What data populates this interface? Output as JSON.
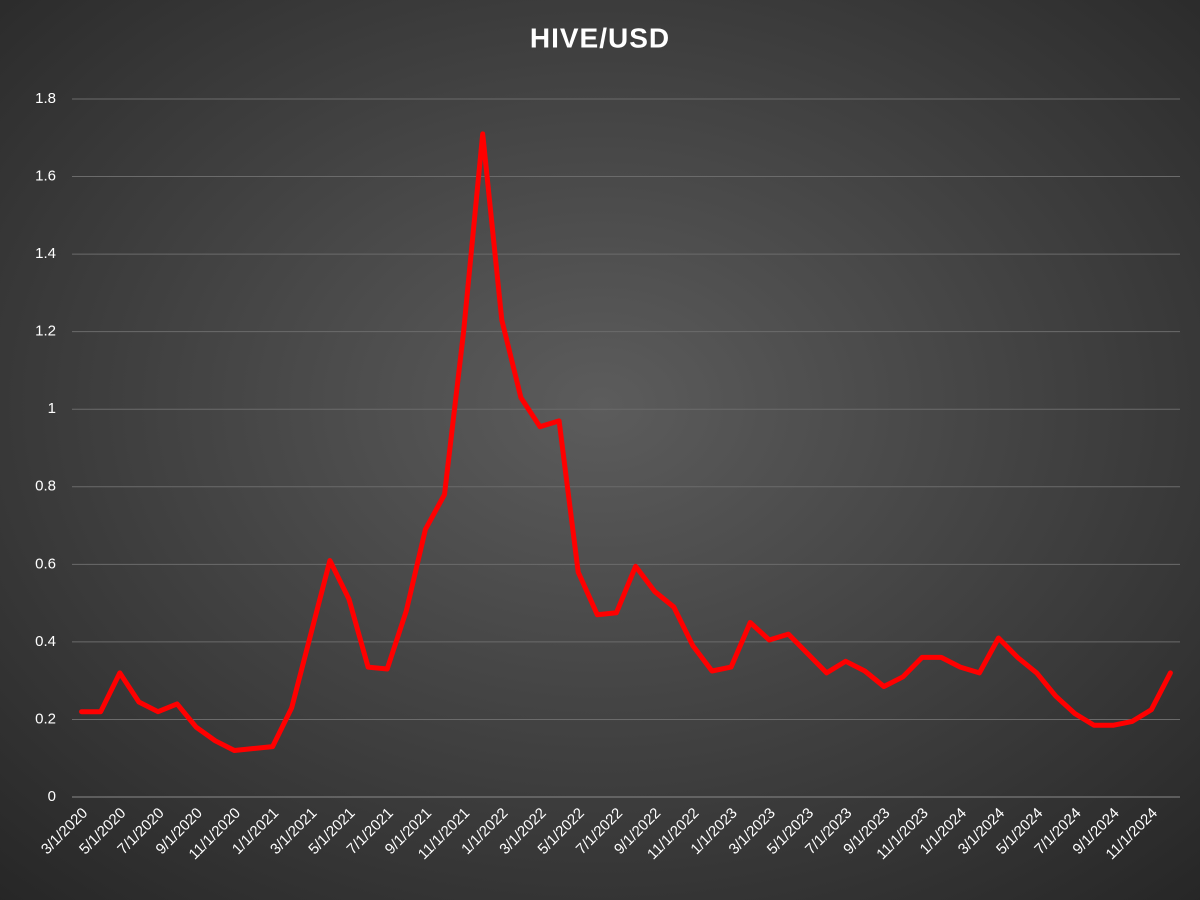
{
  "chart_data": {
    "type": "line",
    "title": "HIVE/USD",
    "categories": [
      "3/1/2020",
      null,
      "5/1/2020",
      null,
      "7/1/2020",
      null,
      "9/1/2020",
      null,
      "11/1/2020",
      null,
      "1/1/2021",
      null,
      "3/1/2021",
      null,
      "5/1/2021",
      null,
      "7/1/2021",
      null,
      "9/1/2021",
      null,
      "11/1/2021",
      null,
      "1/1/2022",
      null,
      "3/1/2022",
      null,
      "5/1/2022",
      null,
      "7/1/2022",
      null,
      "9/1/2022",
      null,
      "11/1/2022",
      null,
      "1/1/2023",
      null,
      "3/1/2023",
      null,
      "5/1/2023",
      null,
      "7/1/2023",
      null,
      "9/1/2023",
      null,
      "11/1/2023",
      null,
      "1/1/2024",
      null,
      "3/1/2024",
      null,
      "5/1/2024",
      null,
      "7/1/2024",
      null,
      "9/1/2024",
      null,
      "11/1/2024",
      null
    ],
    "values": [
      0.22,
      0.22,
      0.32,
      0.245,
      0.22,
      0.24,
      0.18,
      0.145,
      0.12,
      0.125,
      0.13,
      0.23,
      0.42,
      0.61,
      0.51,
      0.335,
      0.33,
      0.48,
      0.69,
      0.78,
      1.2,
      1.71,
      1.23,
      1.03,
      0.955,
      0.97,
      0.58,
      0.47,
      0.475,
      0.595,
      0.53,
      0.49,
      0.39,
      0.325,
      0.335,
      0.45,
      0.405,
      0.42,
      0.37,
      0.32,
      0.35,
      0.325,
      0.285,
      0.31,
      0.36,
      0.36,
      0.335,
      0.32,
      0.41,
      0.36,
      0.32,
      0.26,
      0.215,
      0.185,
      0.185,
      0.195,
      0.225,
      0.32
    ],
    "color": "#ff0000",
    "ylim": [
      0,
      1.8
    ],
    "yticks": [
      0,
      0.2,
      0.4,
      0.6,
      0.8,
      1,
      1.2,
      1.4,
      1.6,
      1.8
    ],
    "grid": true
  }
}
